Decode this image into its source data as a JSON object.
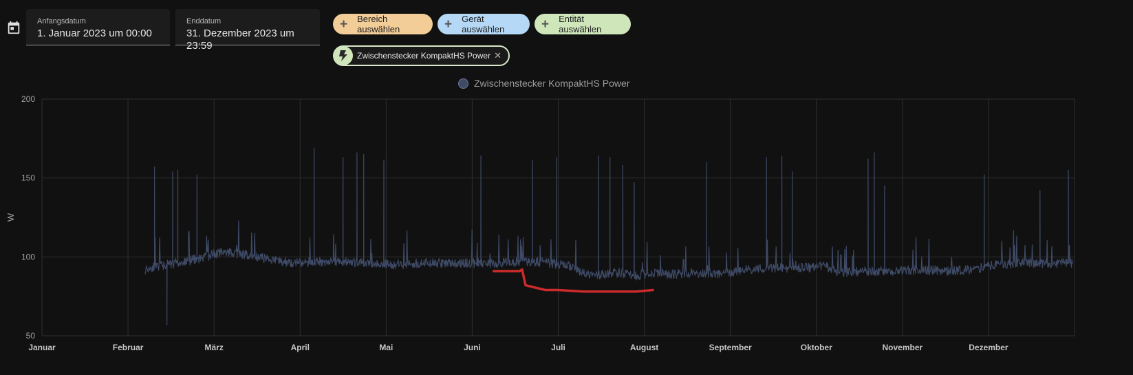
{
  "toolbar": {
    "calendar_icon": "calendar-icon",
    "start_date": {
      "label": "Anfangsdatum",
      "value": "1. Januar 2023 um 00:00"
    },
    "end_date": {
      "label": "Enddatum",
      "value": "31. Dezember 2023 um 23:59"
    },
    "chips": {
      "area": "Bereich auswählen",
      "device": "Gerät auswählen",
      "entity": "Entität auswählen"
    },
    "selected_entity": {
      "label": "Zwischenstecker KompaktHS Power",
      "icon": "flash-icon"
    },
    "chip_colors": {
      "area": "#f2cd98",
      "device": "#b5d8f6",
      "entity": "#cfe6bb"
    }
  },
  "chart_data": {
    "type": "line",
    "title": "",
    "legend": [
      "Zwischenstecker KompaktHS Power"
    ],
    "legend_position": "top-center",
    "xlabel": "",
    "ylabel": "W",
    "ylim": [
      50,
      200
    ],
    "yticks": [
      50,
      100,
      150,
      200
    ],
    "x_categories": [
      "Januar",
      "Februar",
      "März",
      "April",
      "Mai",
      "Juni",
      "Juli",
      "August",
      "September",
      "Oktober",
      "November",
      "Dezember"
    ],
    "xlim_month": [
      0,
      12
    ],
    "grid": true,
    "series": [
      {
        "name": "Zwischenstecker KompaktHS Power",
        "color": "#3e4a66",
        "x_month": [
          1.2,
          1.3,
          1.45,
          1.5,
          1.6,
          1.75,
          1.9,
          2.0,
          2.2,
          2.4,
          2.6,
          2.8,
          3.0,
          3.15,
          3.3,
          3.5,
          3.7,
          3.9,
          4.1,
          4.3,
          4.6,
          4.9,
          5.1,
          5.3,
          5.5,
          5.7,
          5.9,
          6.1,
          6.3,
          6.5,
          6.7,
          6.9,
          7.1,
          7.3,
          7.6,
          7.9,
          8.2,
          8.5,
          8.8,
          9.1,
          9.3,
          9.6,
          9.9,
          10.2,
          10.5,
          10.8,
          11.1,
          11.4,
          11.7,
          11.98
        ],
        "baseline_w": [
          92,
          94,
          95,
          95,
          96,
          98,
          100,
          102,
          103,
          101,
          99,
          97,
          96,
          97,
          97,
          97,
          96,
          96,
          95,
          96,
          96,
          96,
          96,
          96,
          97,
          97,
          96,
          95,
          89,
          89,
          90,
          88,
          90,
          89,
          90,
          89,
          92,
          93,
          93,
          94,
          90,
          91,
          91,
          92,
          91,
          92,
          95,
          96,
          96,
          96
        ],
        "spikes": [
          {
            "x_month": 1.31,
            "w": 157
          },
          {
            "x_month": 1.45,
            "w": 57
          },
          {
            "x_month": 1.52,
            "w": 154
          },
          {
            "x_month": 1.58,
            "w": 155
          },
          {
            "x_month": 1.8,
            "w": 152
          },
          {
            "x_month": 3.16,
            "w": 169
          },
          {
            "x_month": 3.5,
            "w": 163
          },
          {
            "x_month": 3.66,
            "w": 166
          },
          {
            "x_month": 3.74,
            "w": 165
          },
          {
            "x_month": 3.97,
            "w": 161
          },
          {
            "x_month": 5.1,
            "w": 164
          },
          {
            "x_month": 5.7,
            "w": 161
          },
          {
            "x_month": 5.98,
            "w": 163
          },
          {
            "x_month": 6.47,
            "w": 164
          },
          {
            "x_month": 6.6,
            "w": 163
          },
          {
            "x_month": 6.75,
            "w": 158
          },
          {
            "x_month": 6.88,
            "w": 147
          },
          {
            "x_month": 7.72,
            "w": 160
          },
          {
            "x_month": 8.42,
            "w": 163
          },
          {
            "x_month": 8.6,
            "w": 164
          },
          {
            "x_month": 8.72,
            "w": 154
          },
          {
            "x_month": 9.6,
            "w": 162
          },
          {
            "x_month": 9.67,
            "w": 166
          },
          {
            "x_month": 9.79,
            "w": 145
          },
          {
            "x_month": 10.95,
            "w": 152
          },
          {
            "x_month": 11.6,
            "w": 142
          },
          {
            "x_month": 11.93,
            "w": 155
          }
        ]
      }
    ],
    "annotation": {
      "type": "freehand-stroke",
      "color": "#cc2b2b",
      "x_month": [
        5.25,
        5.55,
        5.58,
        5.62,
        5.85,
        6.0,
        6.3,
        6.5,
        6.9,
        7.1
      ],
      "w": [
        91,
        91,
        92,
        82,
        79,
        79,
        78,
        78,
        78,
        79
      ]
    }
  }
}
